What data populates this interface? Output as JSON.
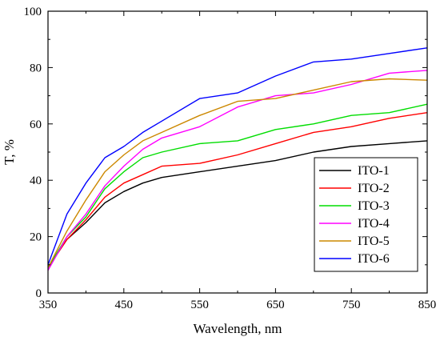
{
  "chart_data": {
    "type": "line",
    "xlabel": "Wavelength, nm",
    "ylabel": "T, %",
    "xlim": [
      350,
      850
    ],
    "ylim": [
      0,
      100
    ],
    "x_ticks": [
      350,
      450,
      550,
      650,
      750,
      850
    ],
    "y_ticks": [
      0,
      20,
      40,
      60,
      80,
      100
    ],
    "grid": false,
    "legend_position": "bottom-right",
    "x": [
      350,
      375,
      400,
      425,
      450,
      475,
      500,
      550,
      600,
      650,
      700,
      750,
      800,
      850
    ],
    "series": [
      {
        "name": "ITO-1",
        "color": "#000000",
        "values": [
          9,
          19,
          25,
          32,
          36,
          39,
          41,
          43,
          45,
          47,
          50,
          52,
          53,
          54
        ]
      },
      {
        "name": "ITO-2",
        "color": "#ff0000",
        "values": [
          9,
          19,
          26,
          34,
          39,
          42,
          45,
          46,
          49,
          53,
          57,
          59,
          62,
          64
        ]
      },
      {
        "name": "ITO-3",
        "color": "#00dd00",
        "values": [
          9,
          20,
          27,
          37,
          43,
          48,
          50,
          53,
          54,
          58,
          60,
          63,
          64,
          67
        ]
      },
      {
        "name": "ITO-4",
        "color": "#ff00ff",
        "values": [
          8,
          20,
          28,
          38,
          45,
          51,
          55,
          59,
          66,
          70,
          71,
          74,
          78,
          79
        ]
      },
      {
        "name": "ITO-5",
        "color": "#cc8800",
        "values": [
          9,
          22,
          33,
          43,
          49,
          54,
          57,
          63,
          68,
          69,
          72,
          75,
          76,
          75.5
        ]
      },
      {
        "name": "ITO-6",
        "color": "#0000ff",
        "values": [
          10,
          28,
          39,
          48,
          52,
          57,
          61,
          69,
          71,
          77,
          82,
          83,
          85,
          87
        ]
      }
    ]
  }
}
